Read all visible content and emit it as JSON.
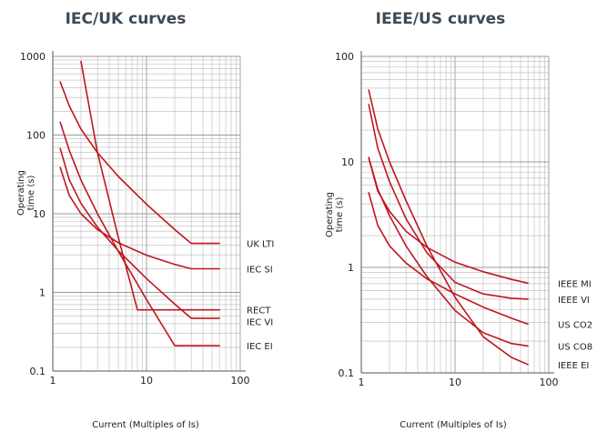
{
  "colors": {
    "curve": "#c0161f",
    "title": "#3d4a55",
    "grid": "#b9b9b9"
  },
  "chart_data": [
    {
      "type": "line",
      "title": "IEC/UK curves",
      "xlabel": "Current (Multiples of Is)",
      "ylabel": "Operating time (s)",
      "ylabel_lines": [
        "Operating",
        "time (s)"
      ],
      "x_scale": "log",
      "y_scale": "log",
      "xlim": [
        1,
        100
      ],
      "ylim": [
        0.1,
        1000
      ],
      "x_tick_labels": [
        "1",
        "10",
        "100"
      ],
      "y_tick_labels": [
        "0.1",
        "1",
        "10",
        "100",
        "1000"
      ],
      "grid": true,
      "series": [
        {
          "name": "UK LTI",
          "x": [
            1.2,
            1.5,
            2,
            3,
            5,
            10,
            20,
            30,
            60
          ],
          "y": [
            474,
            235,
            119,
            59.6,
            29.8,
            13.2,
            6.3,
            4.2,
            4.2
          ]
        },
        {
          "name": "IEC SI",
          "x": [
            1.2,
            1.5,
            2,
            3,
            5,
            10,
            20,
            30,
            60
          ],
          "y": [
            38.7,
            17.1,
            10.0,
            6.3,
            4.28,
            2.97,
            2.27,
            2.0,
            2.0
          ]
        },
        {
          "name": "RECT",
          "x": [
            2,
            3,
            5,
            8,
            20,
            60
          ],
          "y": [
            860,
            60,
            5.0,
            0.6,
            0.6,
            0.6
          ]
        },
        {
          "name": "IEC VI",
          "x": [
            1.2,
            1.5,
            2,
            3,
            5,
            10,
            20,
            30,
            60
          ],
          "y": [
            67.5,
            27,
            13.5,
            6.75,
            3.38,
            1.5,
            0.71,
            0.47,
            0.47
          ]
        },
        {
          "name": "IEC EI",
          "x": [
            1.2,
            1.5,
            2,
            3,
            5,
            10,
            20,
            60
          ],
          "y": [
            145.5,
            64,
            26.7,
            10,
            3.33,
            0.81,
            0.21,
            0.21
          ]
        }
      ]
    },
    {
      "type": "line",
      "title": "IEEE/US curves",
      "xlabel": "Current (Multiples of Is)",
      "ylabel": "Operating time (s)",
      "ylabel_lines": [
        "Operating",
        "time (s)"
      ],
      "x_scale": "log",
      "y_scale": "log",
      "xlim": [
        1,
        100
      ],
      "ylim": [
        0.1,
        100
      ],
      "x_tick_labels": [
        "1",
        "10",
        "100"
      ],
      "y_tick_labels": [
        "0.1",
        "1",
        "10",
        "100"
      ],
      "grid": true,
      "series": [
        {
          "name": "IEEE MI",
          "x": [
            1.2,
            1.5,
            2,
            3,
            5,
            10,
            20,
            40,
            60
          ],
          "y": [
            10.9,
            5.3,
            3.4,
            2.2,
            1.55,
            1.12,
            0.91,
            0.77,
            0.71
          ]
        },
        {
          "name": "IEEE VI",
          "x": [
            1.2,
            1.5,
            2,
            3,
            5,
            10,
            20,
            40,
            60
          ],
          "y": [
            35,
            13.5,
            6.5,
            2.9,
            1.38,
            0.72,
            0.56,
            0.51,
            0.5
          ]
        },
        {
          "name": "US CO2",
          "x": [
            1.2,
            1.5,
            2,
            3,
            5,
            10,
            20,
            40,
            60
          ],
          "y": [
            5.1,
            2.5,
            1.6,
            1.1,
            0.78,
            0.56,
            0.42,
            0.33,
            0.29
          ]
        },
        {
          "name": "US CO8",
          "x": [
            1.2,
            1.5,
            2,
            3,
            5,
            10,
            20,
            40,
            60
          ],
          "y": [
            11,
            5.5,
            3.1,
            1.6,
            0.82,
            0.39,
            0.24,
            0.19,
            0.18
          ]
        },
        {
          "name": "IEEE EI",
          "x": [
            1.2,
            1.5,
            2,
            3,
            5,
            10,
            20,
            40,
            60
          ],
          "y": [
            48,
            20.5,
            10,
            4.3,
            1.6,
            0.52,
            0.22,
            0.14,
            0.12
          ]
        }
      ]
    }
  ]
}
